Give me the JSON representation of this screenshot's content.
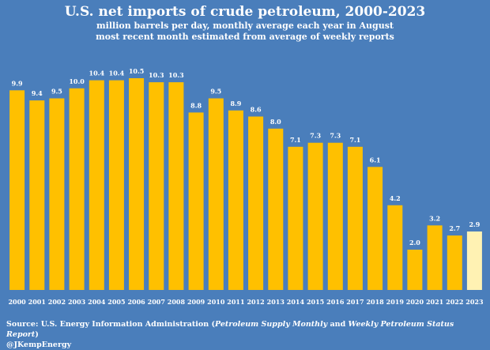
{
  "chart_data": {
    "type": "bar",
    "title": "U.S. net imports of crude petroleum, 2000-2023",
    "subtitle_lines": [
      "million barrels per day, monthly average each year in August",
      "most recent month estimated from average of weekly reports"
    ],
    "xlabel": "",
    "ylabel": "",
    "ylim": [
      0,
      11
    ],
    "grid": false,
    "categories": [
      "2000",
      "2001",
      "2002",
      "2003",
      "2004",
      "2005",
      "2006",
      "2007",
      "2008",
      "2009",
      "2010",
      "2011",
      "2012",
      "2013",
      "2014",
      "2015",
      "2016",
      "2017",
      "2018",
      "2019",
      "2020",
      "2021",
      "2022",
      "2023"
    ],
    "values": [
      9.9,
      9.4,
      9.5,
      10.0,
      10.4,
      10.4,
      10.5,
      10.3,
      10.3,
      8.8,
      9.5,
      8.9,
      8.6,
      8.0,
      7.1,
      7.3,
      7.3,
      7.1,
      6.1,
      4.2,
      2.0,
      3.2,
      2.7,
      2.9
    ],
    "value_labels": [
      "9.9",
      "9.4",
      "9.5",
      "10.0",
      "10.4",
      "10.4",
      "10.5",
      "10.3",
      "10.3",
      "8.8",
      "9.5",
      "8.9",
      "8.6",
      "8.0",
      "7.1",
      "7.3",
      "7.3",
      "7.1",
      "6.1",
      "4.2",
      "2.0",
      "3.2",
      "2.7",
      "2.9"
    ],
    "colors": {
      "background": "#4a7ebb",
      "bar": "#ffc000",
      "bar_estimated": "#fff2b3",
      "text": "#ffffff"
    },
    "estimated_categories": [
      "2023"
    ]
  },
  "source": {
    "prefix": "Source: U.S. Energy Information Administration (",
    "pub1": "Petroleum Supply Monthly",
    "middle": " and ",
    "pub2": "Weekly Petroleum Status Report",
    "suffix": ")",
    "handle": "@JKempEnergy"
  }
}
